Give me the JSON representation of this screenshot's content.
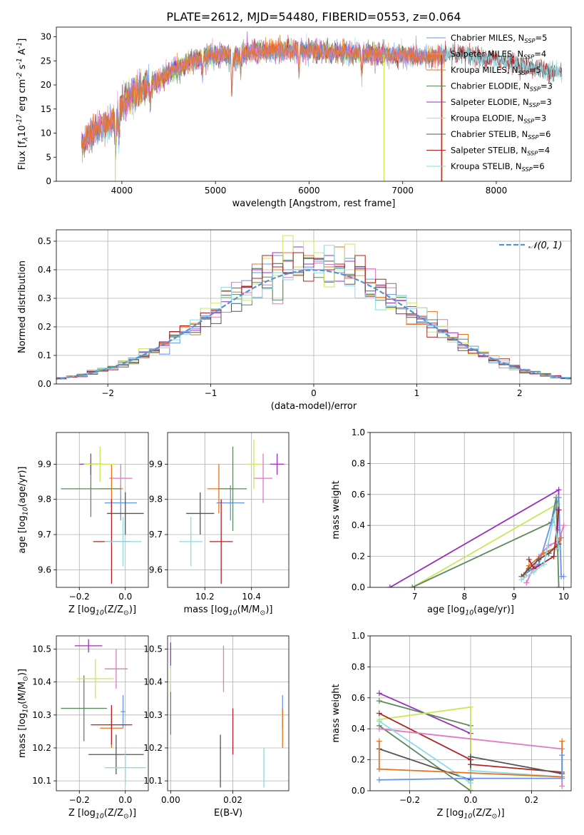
{
  "figure": {
    "title": "PLATE=2612, MJD=54480, FIBERID=0553, z=0.064"
  },
  "colors": {
    "Chabrier MILES": "#6495ed",
    "Salpeter MILES": "#e377c2",
    "Kroupa MILES": "#e8731c",
    "Chabrier ELODIE": "#5a8a5a",
    "Salpeter ELODIE": "#9a2fbf",
    "Kroupa ELODIE": "#c8e85a",
    "Chabrier STELIB": "#555555",
    "Salpeter STELIB": "#b22222",
    "Kroupa STELIB": "#8adbe6",
    "normal": "#5b8fd6",
    "grid": "#b0b0b0"
  },
  "chart_data": [
    {
      "id": "spectrum",
      "type": "line",
      "xlabel": "wavelength [Angstrom, rest frame]",
      "ylabel": "Flux [f$_\\lambda$10$^{-17}$ erg cm$^{-2}$ s$^{-1}$ A$^{-1}$]",
      "xlim": [
        3300,
        8800
      ],
      "ylim": [
        0,
        32
      ],
      "xticks": [
        4000,
        5000,
        6000,
        7000,
        8000
      ],
      "yticks": [
        0,
        5,
        10,
        15,
        20,
        25,
        30
      ],
      "grid": false,
      "legend_position": "right",
      "legend": [
        {
          "name": "Chabrier MILES",
          "nssp": "5"
        },
        {
          "name": "Salpeter MILES",
          "nssp": "4"
        },
        {
          "name": "Kroupa MILES",
          "nssp": "5"
        },
        {
          "name": "Chabrier ELODIE",
          "nssp": "3"
        },
        {
          "name": "Salpeter ELODIE",
          "nssp": "3"
        },
        {
          "name": "Kroupa ELODIE",
          "nssp": "3"
        },
        {
          "name": "Chabrier STELIB",
          "nssp": "6"
        },
        {
          "name": "Salpeter STELIB",
          "nssp": "4"
        },
        {
          "name": "Kroupa STELIB",
          "nssp": "6"
        }
      ],
      "continuum": {
        "x": [
          3570,
          3700,
          3850,
          3950,
          4000,
          4100,
          4200,
          4300,
          4400,
          4500,
          4600,
          4700,
          4800,
          4900,
          5000,
          5100,
          5200,
          5300,
          5500,
          5700,
          5900,
          6100,
          6300,
          6500,
          6700,
          6900,
          7100,
          7300,
          7500,
          7700,
          7900,
          8100,
          8300,
          8500,
          8700
        ],
        "y": [
          7.5,
          10.5,
          12,
          13,
          16,
          18,
          19,
          20,
          21,
          22.5,
          23.5,
          24.5,
          25.2,
          25.8,
          26.3,
          26.5,
          25.5,
          26.8,
          27,
          27.1,
          27.2,
          27,
          26.8,
          26.6,
          26.4,
          26.2,
          26,
          25.8,
          26.5,
          26.2,
          25.5,
          24.8,
          24,
          23.2,
          22.5
        ]
      },
      "dips": [
        {
          "x": 3934,
          "depth": 6
        },
        {
          "x": 3969,
          "depth": 5
        },
        {
          "x": 4305,
          "depth": 4
        },
        {
          "x": 4861,
          "depth": 3
        },
        {
          "x": 5175,
          "depth": 8
        },
        {
          "x": 5270,
          "depth": 3
        },
        {
          "x": 5893,
          "depth": 5
        },
        {
          "x": 6563,
          "depth": 4
        }
      ],
      "artifacts": [
        {
          "series": "Kroupa ELODIE",
          "x": 3930,
          "to_y": 0
        },
        {
          "series": "Kroupa ELODIE",
          "x": 6800,
          "to_y": 0
        },
        {
          "series": "Kroupa MILES",
          "x": 7420,
          "to_y": 0
        },
        {
          "series": "Salpeter STELIB",
          "x": 7415,
          "to_y": 0
        }
      ],
      "coverage": {
        "MILES": [
          3570,
          7450
        ],
        "ELODIE": [
          3900,
          6800
        ],
        "STELIB": [
          3570,
          8700
        ]
      }
    },
    {
      "id": "residuals",
      "type": "area",
      "xlabel": "(data-model)/error",
      "ylabel": "Normed distribution",
      "xlim": [
        -2.5,
        2.5
      ],
      "ylim": [
        0,
        0.54
      ],
      "xticks": [
        -2,
        -1,
        0,
        1,
        2
      ],
      "yticks": [
        0.0,
        0.1,
        0.2,
        0.3,
        0.4,
        0.5
      ],
      "grid": true,
      "legend_position": "top-right",
      "normal_label": "𝒩(0, 1)",
      "bin_width": 0.1,
      "normal_curve": {
        "mean": 0,
        "sigma": 1
      },
      "peak_heights": {
        "Chabrier MILES": [
          0.39,
          0.42,
          0.45,
          0.4,
          0.38,
          0.41,
          0.43,
          0.36,
          0.39,
          0.44,
          0.4
        ],
        "Kroupa MILES": [
          0.42,
          0.36,
          0.4,
          0.46,
          0.38,
          0.45,
          0.44,
          0.41,
          0.48,
          0.37,
          0.4
        ],
        "Kroupa ELODIE": [
          0.35,
          0.44,
          0.38,
          0.52,
          0.41,
          0.5,
          0.46,
          0.34,
          0.4,
          0.49,
          0.38
        ],
        "Salpeter ELODIE": [
          0.4,
          0.39,
          0.46,
          0.43,
          0.48,
          0.42,
          0.4,
          0.45,
          0.36,
          0.43,
          0.41
        ],
        "Salpeter STELIB": [
          0.37,
          0.45,
          0.41,
          0.39,
          0.46,
          0.36,
          0.44,
          0.4,
          0.42,
          0.38,
          0.45
        ]
      }
    },
    {
      "id": "age_vs_Z",
      "type": "scatter",
      "xlabel": "Z [log$_{10}$(Z/Z$_\\odot$)]",
      "ylabel": "age  [log$_{10}$(age/yr)]",
      "xlim": [
        -0.3,
        0.1
      ],
      "ylim": [
        9.55,
        9.99
      ],
      "xticks": [
        -0.2,
        0.0
      ],
      "yticks": [
        9.6,
        9.7,
        9.8,
        9.9
      ],
      "grid": true,
      "points": [
        {
          "series": "Chabrier MILES",
          "x": -0.02,
          "y": 9.79,
          "xerr": 0.07,
          "yerr": 0.05
        },
        {
          "series": "Salpeter MILES",
          "x": -0.02,
          "y": 9.86,
          "xerr": 0.05,
          "yerr": 0.04
        },
        {
          "series": "Kroupa MILES",
          "x": -0.06,
          "y": 9.83,
          "xerr": 0.05,
          "yerr": 0.07
        },
        {
          "series": "Chabrier ELODIE",
          "x": -0.15,
          "y": 9.83,
          "xerr": 0.13,
          "yerr": 0.08
        },
        {
          "series": "Salpeter ELODIE",
          "x": -0.15,
          "y": 9.9,
          "xerr": 0.05,
          "yerr": 0.03
        },
        {
          "series": "Kroupa ELODIE",
          "x": -0.11,
          "y": 9.9,
          "xerr": 0.07,
          "yerr": 0.05
        },
        {
          "series": "Chabrier STELIB",
          "x": 0.0,
          "y": 9.76,
          "xerr": 0.08,
          "yerr": 0.06
        },
        {
          "series": "Salpeter STELIB",
          "x": -0.06,
          "y": 9.68,
          "xerr": 0.08,
          "yerr": 0.12
        },
        {
          "series": "Kroupa STELIB",
          "x": -0.01,
          "y": 9.68,
          "xerr": 0.08,
          "yerr": 0.07
        }
      ]
    },
    {
      "id": "age_vs_mass",
      "type": "scatter",
      "xlabel": "mass [log$_{10}$(M/M$_\\odot$)]",
      "ylabel": "",
      "xlim": [
        10.04,
        10.56
      ],
      "ylim": [
        9.55,
        9.99
      ],
      "xticks": [
        10.2,
        10.4
      ],
      "yticks": [
        9.6,
        9.7,
        9.8,
        9.9
      ],
      "grid": true,
      "points": [
        {
          "series": "Chabrier MILES",
          "x": 10.31,
          "y": 9.79,
          "xerr": 0.06,
          "yerr": 0.05
        },
        {
          "series": "Salpeter MILES",
          "x": 10.45,
          "y": 9.86,
          "xerr": 0.04,
          "yerr": 0.07
        },
        {
          "series": "Kroupa MILES",
          "x": 10.26,
          "y": 9.83,
          "xerr": 0.05,
          "yerr": 0.07
        },
        {
          "series": "Chabrier ELODIE",
          "x": 10.32,
          "y": 9.83,
          "xerr": 0.06,
          "yerr": 0.12
        },
        {
          "series": "Salpeter ELODIE",
          "x": 10.51,
          "y": 9.9,
          "xerr": 0.03,
          "yerr": 0.03
        },
        {
          "series": "Kroupa ELODIE",
          "x": 10.41,
          "y": 9.9,
          "xerr": 0.03,
          "yerr": 0.07
        },
        {
          "series": "Chabrier STELIB",
          "x": 10.18,
          "y": 9.76,
          "xerr": 0.06,
          "yerr": 0.06
        },
        {
          "series": "Salpeter STELIB",
          "x": 10.27,
          "y": 9.68,
          "xerr": 0.05,
          "yerr": 0.12
        },
        {
          "series": "Kroupa STELIB",
          "x": 10.14,
          "y": 9.68,
          "xerr": 0.05,
          "yerr": 0.07
        }
      ]
    },
    {
      "id": "weight_vs_age",
      "type": "line",
      "xlabel": "age  [log$_{10}$(age/yr)]",
      "ylabel": "mass weight",
      "xlim": [
        6.1,
        10.15
      ],
      "ylim": [
        0,
        1.0
      ],
      "xticks": [
        7,
        8,
        9,
        10
      ],
      "yticks": [
        0.0,
        0.2,
        0.4,
        0.6,
        0.8,
        1.0
      ],
      "grid": true,
      "series": [
        {
          "name": "Salpeter ELODIE",
          "x": [
            6.5,
            9.9,
            9.88
          ],
          "y": [
            0.0,
            0.63,
            0.37
          ]
        },
        {
          "name": "Kroupa ELODIE",
          "x": [
            6.95,
            9.88,
            9.85
          ],
          "y": [
            0.0,
            0.54,
            0.46
          ]
        },
        {
          "name": "Chabrier ELODIE",
          "x": [
            6.95,
            9.75,
            9.85,
            9.9
          ],
          "y": [
            0.0,
            0.42,
            0.58,
            0.0
          ]
        },
        {
          "name": "Chabrier MILES",
          "x": [
            9.2,
            9.5,
            9.9,
            9.95,
            10.0
          ],
          "y": [
            0.08,
            0.15,
            0.58,
            0.07,
            0.07
          ]
        },
        {
          "name": "Salpeter MILES",
          "x": [
            9.25,
            9.5,
            9.7,
            9.9,
            10.0
          ],
          "y": [
            0.03,
            0.2,
            0.27,
            0.3,
            0.4
          ]
        },
        {
          "name": "Kroupa MILES",
          "x": [
            9.2,
            9.3,
            9.6,
            9.85,
            9.95
          ],
          "y": [
            0.08,
            0.14,
            0.22,
            0.26,
            0.32
          ]
        },
        {
          "name": "Chabrier STELIB",
          "x": [
            9.15,
            9.3,
            9.5,
            9.7,
            9.9
          ],
          "y": [
            0.07,
            0.12,
            0.18,
            0.22,
            0.28
          ]
        },
        {
          "name": "Salpeter STELIB",
          "x": [
            9.3,
            9.4,
            9.8,
            9.9
          ],
          "y": [
            0.18,
            0.12,
            0.2,
            0.5
          ]
        },
        {
          "name": "Kroupa STELIB",
          "x": [
            9.15,
            9.4,
            9.6,
            9.8,
            9.9
          ],
          "y": [
            0.05,
            0.1,
            0.15,
            0.45,
            0.25
          ]
        }
      ]
    },
    {
      "id": "mass_vs_Z",
      "type": "scatter",
      "xlabel": "Z [log$_{10}$(Z/Z$_\\odot$)]",
      "ylabel": "mass [log$_{10}$(M/M$_\\odot$)]",
      "xlim": [
        -0.3,
        0.1
      ],
      "ylim": [
        10.07,
        10.54
      ],
      "xticks": [
        -0.2,
        0.0
      ],
      "yticks": [
        10.1,
        10.2,
        10.3,
        10.4,
        10.5
      ],
      "grid": true,
      "points": [
        {
          "series": "Chabrier MILES",
          "x": -0.01,
          "y": 10.31,
          "xerr": 0.01,
          "yerr": 0.05
        },
        {
          "series": "Salpeter MILES",
          "x": -0.04,
          "y": 10.44,
          "xerr": 0.05,
          "yerr": 0.06
        },
        {
          "series": "Kroupa MILES",
          "x": -0.06,
          "y": 10.26,
          "xerr": 0.05,
          "yerr": 0.06
        },
        {
          "series": "Chabrier ELODIE",
          "x": -0.18,
          "y": 10.32,
          "xerr": 0.1,
          "yerr": 0.1
        },
        {
          "series": "Salpeter ELODIE",
          "x": -0.16,
          "y": 10.51,
          "xerr": 0.06,
          "yerr": 0.02
        },
        {
          "series": "Kroupa ELODIE",
          "x": -0.13,
          "y": 10.41,
          "xerr": 0.08,
          "yerr": 0.06
        },
        {
          "series": "Chabrier STELIB",
          "x": -0.04,
          "y": 10.18,
          "xerr": 0.12,
          "yerr": 0.06
        },
        {
          "series": "Salpeter STELIB",
          "x": -0.06,
          "y": 10.27,
          "xerr": 0.09,
          "yerr": 0.06
        },
        {
          "series": "Kroupa STELIB",
          "x": 0.0,
          "y": 10.14,
          "xerr": 0.09,
          "yerr": 0.05
        }
      ]
    },
    {
      "id": "mass_vs_ebv",
      "type": "scatter",
      "xlabel": "E(B-V)",
      "ylabel": "",
      "xlim": [
        -0.001,
        0.038
      ],
      "ylim": [
        10.07,
        10.54
      ],
      "xticks": [
        0.0,
        0.02
      ],
      "yticks": [
        10.1,
        10.2,
        10.3,
        10.4,
        10.5
      ],
      "grid": true,
      "points": [
        {
          "series": "Chabrier MILES",
          "x": 0.036,
          "y": 10.31,
          "xerr": 0,
          "yerr": 0.05
        },
        {
          "series": "Salpeter MILES",
          "x": 0.017,
          "y": 10.44,
          "xerr": 0,
          "yerr": 0.07
        },
        {
          "series": "Kroupa MILES",
          "x": 0.036,
          "y": 10.26,
          "xerr": 0,
          "yerr": 0.06
        },
        {
          "series": "Chabrier ELODIE",
          "x": 0.0,
          "y": 10.32,
          "xerr": 0,
          "yerr": 0.08
        },
        {
          "series": "Salpeter ELODIE",
          "x": 0.0,
          "y": 10.48,
          "xerr": 0,
          "yerr": 0.04
        },
        {
          "series": "Kroupa ELODIE",
          "x": 0.0,
          "y": 10.41,
          "xerr": 0,
          "yerr": 0.04
        },
        {
          "series": "Chabrier STELIB",
          "x": 0.016,
          "y": 10.16,
          "xerr": 0,
          "yerr": 0.08
        },
        {
          "series": "Salpeter STELIB",
          "x": 0.02,
          "y": 10.25,
          "xerr": 0,
          "yerr": 0.07
        },
        {
          "series": "Kroupa STELIB",
          "x": 0.03,
          "y": 10.14,
          "xerr": 0,
          "yerr": 0.06
        }
      ]
    },
    {
      "id": "weight_vs_Z",
      "type": "line",
      "xlabel": "Z [log$_{10}$(Z/Z$_\\odot$)]",
      "ylabel": "mass weight",
      "xlim": [
        -0.33,
        0.33
      ],
      "ylim": [
        0,
        1.0
      ],
      "xticks": [
        -0.2,
        0.0,
        0.2
      ],
      "yticks": [
        0.0,
        0.2,
        0.4,
        0.6,
        0.8,
        1.0
      ],
      "grid": true,
      "series": [
        {
          "name": "Salpeter ELODIE",
          "x": [
            -0.3,
            0.0,
            0.0
          ],
          "y": [
            0.63,
            0.37,
            0.0
          ]
        },
        {
          "name": "Chabrier ELODIE",
          "x": [
            -0.3,
            0.0,
            0.0,
            -0.3
          ],
          "y": [
            0.58,
            0.42,
            0.0,
            0.42
          ]
        },
        {
          "name": "Kroupa ELODIE",
          "x": [
            -0.3,
            0.0,
            0.0
          ],
          "y": [
            0.46,
            0.54,
            0.0
          ]
        },
        {
          "name": "Salpeter STELIB",
          "x": [
            -0.3,
            0.0,
            0.0,
            0.3
          ],
          "y": [
            0.5,
            0.2,
            0.17,
            0.12
          ]
        },
        {
          "name": "Salpeter MILES",
          "x": [
            -0.3,
            0.3,
            0.3
          ],
          "y": [
            0.4,
            0.27,
            0.03
          ]
        },
        {
          "name": "Chabrier STELIB",
          "x": [
            -0.3,
            0.0,
            0.0,
            0.3
          ],
          "y": [
            0.27,
            0.07,
            0.22,
            0.11
          ]
        },
        {
          "name": "Kroupa STELIB",
          "x": [
            -0.3,
            0.0,
            0.0,
            0.3
          ],
          "y": [
            0.45,
            0.05,
            0.13,
            0.09
          ]
        },
        {
          "name": "Kroupa MILES",
          "x": [
            -0.3,
            -0.3,
            0.3,
            0.3
          ],
          "y": [
            0.32,
            0.14,
            0.09,
            0.32
          ]
        },
        {
          "name": "Chabrier MILES",
          "x": [
            -0.3,
            0.0,
            0.3,
            0.3
          ],
          "y": [
            0.07,
            0.08,
            0.08,
            0.23
          ]
        }
      ]
    }
  ]
}
